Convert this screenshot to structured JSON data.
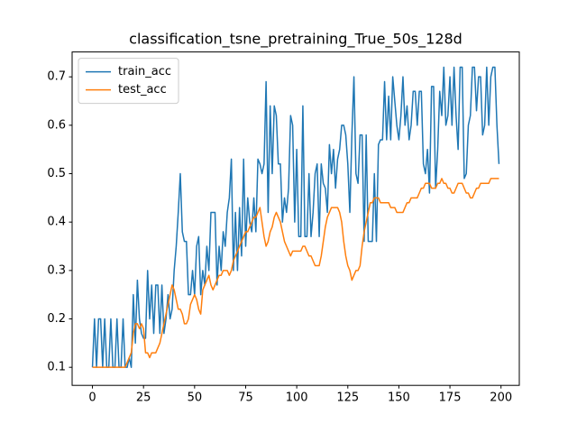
{
  "chart_data": {
    "type": "line",
    "title": "classification_tsne_pretraining_True_50s_128d",
    "x": [
      0,
      1,
      2,
      3,
      4,
      5,
      6,
      7,
      8,
      9,
      10,
      11,
      12,
      13,
      14,
      15,
      16,
      17,
      18,
      19,
      20,
      21,
      22,
      23,
      24,
      25,
      26,
      27,
      28,
      29,
      30,
      31,
      32,
      33,
      34,
      35,
      36,
      37,
      38,
      39,
      40,
      41,
      42,
      43,
      44,
      45,
      46,
      47,
      48,
      49,
      50,
      51,
      52,
      53,
      54,
      55,
      56,
      57,
      58,
      59,
      60,
      61,
      62,
      63,
      64,
      65,
      66,
      67,
      68,
      69,
      70,
      71,
      72,
      73,
      74,
      75,
      76,
      77,
      78,
      79,
      80,
      81,
      82,
      83,
      84,
      85,
      86,
      87,
      88,
      89,
      90,
      91,
      92,
      93,
      94,
      95,
      96,
      97,
      98,
      99,
      100,
      101,
      102,
      103,
      104,
      105,
      106,
      107,
      108,
      109,
      110,
      111,
      112,
      113,
      114,
      115,
      116,
      117,
      118,
      119,
      120,
      121,
      122,
      123,
      124,
      125,
      126,
      127,
      128,
      129,
      130,
      131,
      132,
      133,
      134,
      135,
      136,
      137,
      138,
      139,
      140,
      141,
      142,
      143,
      144,
      145,
      146,
      147,
      148,
      149,
      150,
      151,
      152,
      153,
      154,
      155,
      156,
      157,
      158,
      159,
      160,
      161,
      162,
      163,
      164,
      165,
      166,
      167,
      168,
      169,
      170,
      171,
      172,
      173,
      174,
      175,
      176,
      177,
      178,
      179,
      180,
      181,
      182,
      183,
      184,
      185,
      186,
      187,
      188,
      189,
      190,
      191,
      192,
      193,
      194,
      195,
      196,
      197,
      198,
      199
    ],
    "series": [
      {
        "name": "train_acc",
        "color": "#1f77b4",
        "values": [
          0.1,
          0.2,
          0.1,
          0.2,
          0.2,
          0.1,
          0.2,
          0.1,
          0.1,
          0.2,
          0.1,
          0.1,
          0.2,
          0.1,
          0.1,
          0.2,
          0.1,
          0.1,
          0.12,
          0.1,
          0.25,
          0.15,
          0.28,
          0.2,
          0.17,
          0.16,
          0.16,
          0.3,
          0.2,
          0.27,
          0.17,
          0.27,
          0.27,
          0.17,
          0.27,
          0.17,
          0.2,
          0.25,
          0.2,
          0.22,
          0.3,
          0.35,
          0.42,
          0.5,
          0.38,
          0.36,
          0.36,
          0.25,
          0.25,
          0.3,
          0.25,
          0.35,
          0.37,
          0.25,
          0.3,
          0.27,
          0.35,
          0.3,
          0.42,
          0.42,
          0.42,
          0.27,
          0.35,
          0.3,
          0.38,
          0.35,
          0.42,
          0.45,
          0.53,
          0.3,
          0.42,
          0.3,
          0.43,
          0.33,
          0.53,
          0.35,
          0.45,
          0.4,
          0.38,
          0.45,
          0.38,
          0.53,
          0.52,
          0.5,
          0.52,
          0.69,
          0.42,
          0.64,
          0.5,
          0.64,
          0.62,
          0.52,
          0.52,
          0.4,
          0.45,
          0.42,
          0.47,
          0.62,
          0.6,
          0.4,
          0.55,
          0.37,
          0.37,
          0.64,
          0.37,
          0.37,
          0.5,
          0.37,
          0.42,
          0.5,
          0.52,
          0.37,
          0.52,
          0.48,
          0.47,
          0.42,
          0.56,
          0.5,
          0.55,
          0.47,
          0.53,
          0.55,
          0.6,
          0.6,
          0.58,
          0.52,
          0.42,
          0.58,
          0.7,
          0.5,
          0.48,
          0.58,
          0.58,
          0.36,
          0.58,
          0.36,
          0.36,
          0.36,
          0.5,
          0.36,
          0.56,
          0.57,
          0.57,
          0.69,
          0.57,
          0.66,
          0.57,
          0.7,
          0.65,
          0.6,
          0.57,
          0.62,
          0.7,
          0.6,
          0.64,
          0.57,
          0.6,
          0.67,
          0.67,
          0.6,
          0.67,
          0.67,
          0.52,
          0.5,
          0.55,
          0.46,
          0.68,
          0.68,
          0.47,
          0.55,
          0.67,
          0.62,
          0.72,
          0.6,
          0.62,
          0.7,
          0.6,
          0.72,
          0.62,
          0.55,
          0.72,
          0.72,
          0.49,
          0.5,
          0.6,
          0.62,
          0.72,
          0.72,
          0.63,
          0.7,
          0.7,
          0.58,
          0.6,
          0.72,
          0.6,
          0.7,
          0.72,
          0.72,
          0.6,
          0.52
        ]
      },
      {
        "name": "test_acc",
        "color": "#ff7f0e",
        "values": [
          0.1,
          0.1,
          0.1,
          0.1,
          0.1,
          0.1,
          0.1,
          0.1,
          0.1,
          0.1,
          0.1,
          0.1,
          0.1,
          0.1,
          0.1,
          0.1,
          0.1,
          0.11,
          0.12,
          0.13,
          0.17,
          0.19,
          0.19,
          0.18,
          0.19,
          0.18,
          0.13,
          0.13,
          0.12,
          0.13,
          0.13,
          0.13,
          0.14,
          0.15,
          0.17,
          0.19,
          0.21,
          0.23,
          0.25,
          0.27,
          0.26,
          0.24,
          0.22,
          0.22,
          0.21,
          0.19,
          0.19,
          0.2,
          0.23,
          0.24,
          0.25,
          0.24,
          0.22,
          0.21,
          0.26,
          0.27,
          0.28,
          0.29,
          0.27,
          0.26,
          0.27,
          0.28,
          0.29,
          0.29,
          0.3,
          0.3,
          0.3,
          0.29,
          0.3,
          0.32,
          0.33,
          0.34,
          0.35,
          0.36,
          0.37,
          0.38,
          0.38,
          0.39,
          0.4,
          0.41,
          0.41,
          0.42,
          0.43,
          0.4,
          0.37,
          0.35,
          0.36,
          0.38,
          0.39,
          0.41,
          0.42,
          0.41,
          0.4,
          0.38,
          0.36,
          0.35,
          0.34,
          0.33,
          0.34,
          0.34,
          0.34,
          0.34,
          0.34,
          0.35,
          0.35,
          0.34,
          0.33,
          0.33,
          0.32,
          0.31,
          0.31,
          0.31,
          0.33,
          0.36,
          0.39,
          0.41,
          0.42,
          0.43,
          0.43,
          0.43,
          0.43,
          0.42,
          0.4,
          0.36,
          0.33,
          0.31,
          0.3,
          0.28,
          0.29,
          0.3,
          0.3,
          0.31,
          0.35,
          0.38,
          0.4,
          0.42,
          0.44,
          0.44,
          0.45,
          0.45,
          0.45,
          0.44,
          0.44,
          0.44,
          0.44,
          0.44,
          0.43,
          0.43,
          0.43,
          0.42,
          0.42,
          0.42,
          0.42,
          0.43,
          0.44,
          0.44,
          0.45,
          0.45,
          0.45,
          0.45,
          0.46,
          0.47,
          0.47,
          0.48,
          0.48,
          0.48,
          0.47,
          0.47,
          0.47,
          0.48,
          0.48,
          0.49,
          0.48,
          0.48,
          0.47,
          0.47,
          0.46,
          0.46,
          0.47,
          0.48,
          0.48,
          0.48,
          0.47,
          0.46,
          0.46,
          0.45,
          0.45,
          0.46,
          0.47,
          0.47,
          0.48,
          0.48,
          0.48,
          0.48,
          0.48,
          0.49,
          0.49,
          0.49,
          0.49,
          0.49
        ]
      }
    ],
    "xlim": [
      -9.95,
      208.95
    ],
    "ylim": [
      0.0627,
      0.7514
    ],
    "xticks": [
      0,
      25,
      50,
      75,
      100,
      125,
      150,
      175,
      200
    ],
    "yticks": [
      0.1,
      0.2,
      0.3,
      0.4,
      0.5,
      0.6,
      0.7
    ],
    "grid": false,
    "legend": "upper left"
  }
}
